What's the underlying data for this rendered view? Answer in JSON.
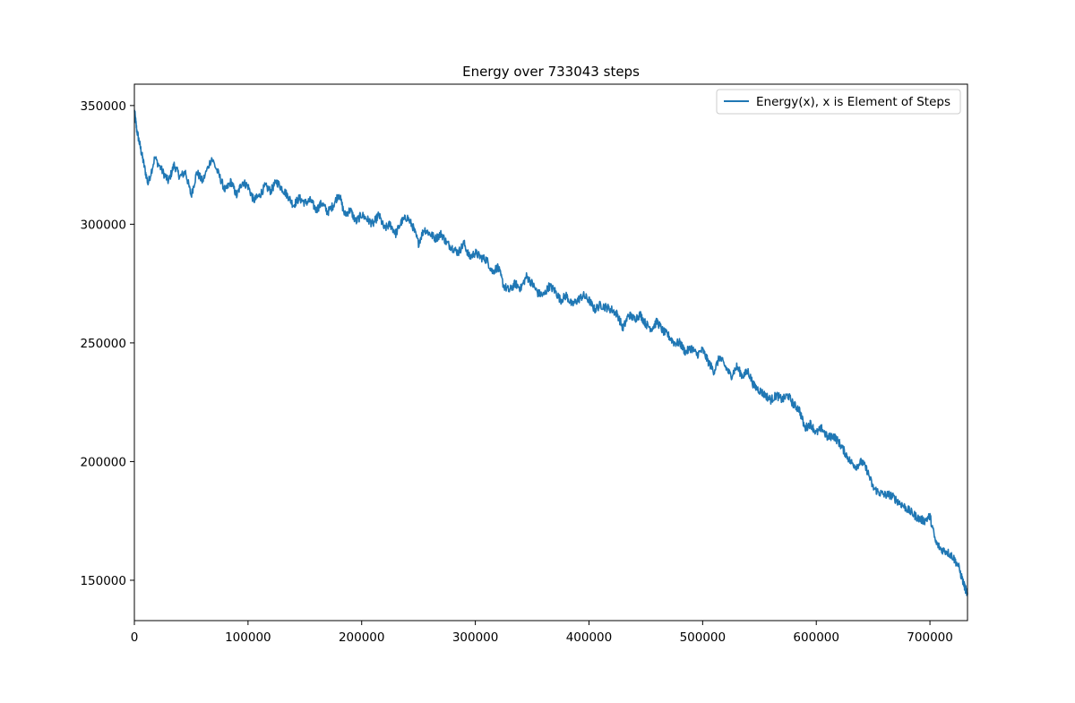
{
  "chart_data": {
    "type": "line",
    "title": "Energy over  733043 steps",
    "xlabel": "",
    "ylabel": "",
    "xlim": [
      0,
      733043
    ],
    "ylim": [
      133000,
      359000
    ],
    "x_ticks": [
      0,
      100000,
      200000,
      300000,
      400000,
      500000,
      600000,
      700000
    ],
    "x_tick_labels": [
      "0",
      "100000",
      "200000",
      "300000",
      "400000",
      "500000",
      "600000",
      "700000"
    ],
    "y_ticks": [
      150000,
      200000,
      250000,
      300000,
      350000
    ],
    "y_tick_labels": [
      "150000",
      "200000",
      "250000",
      "300000",
      "350000"
    ],
    "grid": false,
    "legend_position": "top-right",
    "series": [
      {
        "name": "Energy(x), x is Element of Steps",
        "color": "#1f77b4",
        "x": [
          0,
          2000,
          5000,
          8000,
          12000,
          18000,
          25000,
          30000,
          35000,
          40000,
          45000,
          50000,
          55000,
          60000,
          68000,
          75000,
          80000,
          85000,
          90000,
          95000,
          100000,
          105000,
          110000,
          115000,
          120000,
          125000,
          130000,
          135000,
          140000,
          145000,
          150000,
          155000,
          160000,
          165000,
          170000,
          175000,
          180000,
          185000,
          190000,
          195000,
          200000,
          205000,
          210000,
          215000,
          220000,
          225000,
          230000,
          235000,
          240000,
          245000,
          250000,
          255000,
          260000,
          265000,
          270000,
          275000,
          280000,
          285000,
          290000,
          295000,
          300000,
          305000,
          310000,
          315000,
          320000,
          325000,
          330000,
          335000,
          340000,
          345000,
          350000,
          355000,
          360000,
          365000,
          370000,
          375000,
          380000,
          385000,
          390000,
          395000,
          400000,
          405000,
          410000,
          415000,
          420000,
          425000,
          430000,
          435000,
          440000,
          445000,
          450000,
          455000,
          460000,
          465000,
          470000,
          475000,
          480000,
          485000,
          490000,
          495000,
          500000,
          505000,
          510000,
          515000,
          520000,
          525000,
          530000,
          535000,
          540000,
          545000,
          550000,
          555000,
          560000,
          565000,
          570000,
          575000,
          580000,
          585000,
          590000,
          595000,
          600000,
          605000,
          610000,
          615000,
          620000,
          625000,
          630000,
          635000,
          640000,
          645000,
          650000,
          655000,
          660000,
          665000,
          670000,
          675000,
          680000,
          685000,
          690000,
          695000,
          700000,
          705000,
          710000,
          715000,
          720000,
          725000,
          730000,
          733043
        ],
        "y": [
          348000,
          340000,
          333000,
          326000,
          317000,
          328000,
          322000,
          318000,
          325000,
          320000,
          322000,
          312000,
          322000,
          318000,
          328000,
          320000,
          314000,
          318000,
          312000,
          318000,
          316000,
          310000,
          312000,
          316000,
          314000,
          318000,
          315000,
          312000,
          308000,
          311000,
          309000,
          310000,
          306000,
          309000,
          305000,
          308000,
          313000,
          304000,
          306000,
          301000,
          304000,
          302000,
          300000,
          304000,
          298000,
          300000,
          296000,
          301000,
          303000,
          299000,
          292000,
          298000,
          296000,
          294000,
          296000,
          292000,
          290000,
          288000,
          292000,
          286000,
          288000,
          286000,
          285000,
          280000,
          282000,
          274000,
          272000,
          275000,
          273000,
          278000,
          275000,
          271000,
          270000,
          274000,
          272000,
          268000,
          270000,
          266000,
          268000,
          270000,
          268000,
          264000,
          266000,
          265000,
          264000,
          262000,
          256000,
          262000,
          260000,
          262000,
          258000,
          256000,
          259000,
          255000,
          253000,
          250000,
          250000,
          246000,
          248000,
          245000,
          247000,
          242000,
          238000,
          244000,
          240000,
          236000,
          240000,
          236000,
          238000,
          232000,
          230000,
          228000,
          226000,
          228000,
          226000,
          228000,
          224000,
          222000,
          214000,
          216000,
          212000,
          214000,
          210000,
          211000,
          208000,
          204000,
          200000,
          198000,
          200000,
          196000,
          189000,
          187000,
          186000,
          186000,
          184000,
          182000,
          180000,
          178000,
          176000,
          175000,
          177000,
          166000,
          163000,
          162000,
          160000,
          156000,
          148000,
          144000
        ]
      }
    ]
  }
}
